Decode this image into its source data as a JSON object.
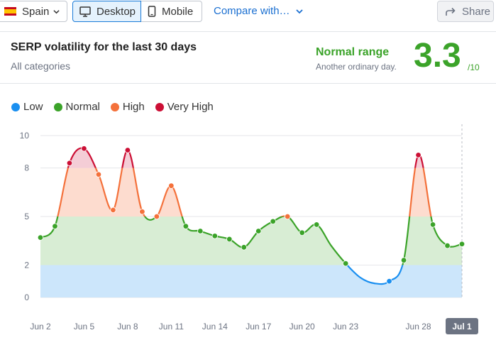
{
  "toolbar": {
    "country": "Spain",
    "desktop_label": "Desktop",
    "mobile_label": "Mobile",
    "compare_label": "Compare with…",
    "share_label": "Share"
  },
  "card": {
    "title": "SERP volatility for the last 30 days",
    "subtitle": "All categories",
    "range_label": "Normal range",
    "range_desc": "Another ordinary day.",
    "score": "3.3",
    "score_max": "/10"
  },
  "legend": [
    {
      "label": "Low",
      "color": "#1a8ff0"
    },
    {
      "label": "Normal",
      "color": "#3ba329"
    },
    {
      "label": "High",
      "color": "#f4713b"
    },
    {
      "label": "Very High",
      "color": "#cc0f35"
    }
  ],
  "colors": {
    "low": "#1a8ff0",
    "normal": "#3ba329",
    "high": "#f4713b",
    "very_high": "#cc0f35",
    "band_low": "#cce6fb",
    "band_normal": "#d8edd4",
    "band_high": "#fddccf",
    "band_very_high": "#f4cdd6"
  },
  "chart_data": {
    "type": "area",
    "title": "",
    "xlabel": "",
    "ylabel": "",
    "ylim": [
      0,
      10
    ],
    "yticks": [
      0,
      2,
      5,
      8,
      10
    ],
    "xtick_labels": [
      "Jun 2",
      "Jun 5",
      "Jun 8",
      "Jun 11",
      "Jun 14",
      "Jun 17",
      "Jun 20",
      "Jun 23",
      "Jun 28",
      "Jul 1"
    ],
    "xtick_days": [
      0,
      3,
      6,
      9,
      12,
      15,
      18,
      21,
      26,
      29
    ],
    "highlighted_tick": "Jul 1",
    "thresholds": [
      {
        "name": "Low",
        "from": 0,
        "to": 2
      },
      {
        "name": "Normal",
        "from": 2,
        "to": 5
      },
      {
        "name": "High",
        "from": 5,
        "to": 8
      },
      {
        "name": "Very High",
        "from": 8,
        "to": 10
      }
    ],
    "series": [
      {
        "values": [
          3.7,
          4.4,
          8.3,
          9.2,
          7.6,
          5.4,
          9.1,
          5.3,
          5.0,
          6.9,
          4.4,
          4.1,
          3.8,
          3.6,
          3.1,
          4.1,
          4.7,
          5.0,
          4.0,
          4.5,
          null,
          2.1,
          null,
          null,
          1.0,
          2.3,
          8.8,
          4.5,
          3.2,
          3.3
        ],
        "dates": [
          "Jun 2",
          "Jun 3",
          "Jun 4",
          "Jun 5",
          "Jun 6",
          "Jun 7",
          "Jun 8",
          "Jun 9",
          "Jun 10",
          "Jun 11",
          "Jun 12",
          "Jun 13",
          "Jun 14",
          "Jun 15",
          "Jun 16",
          "Jun 17",
          "Jun 18",
          "Jun 19",
          "Jun 20",
          "Jun 21",
          "Jun 22",
          "Jun 23",
          "Jun 24",
          "Jun 25",
          "Jun 26",
          "Jun 27",
          "Jun 28",
          "Jun 29",
          "Jun 30",
          "Jul 1"
        ]
      }
    ]
  }
}
